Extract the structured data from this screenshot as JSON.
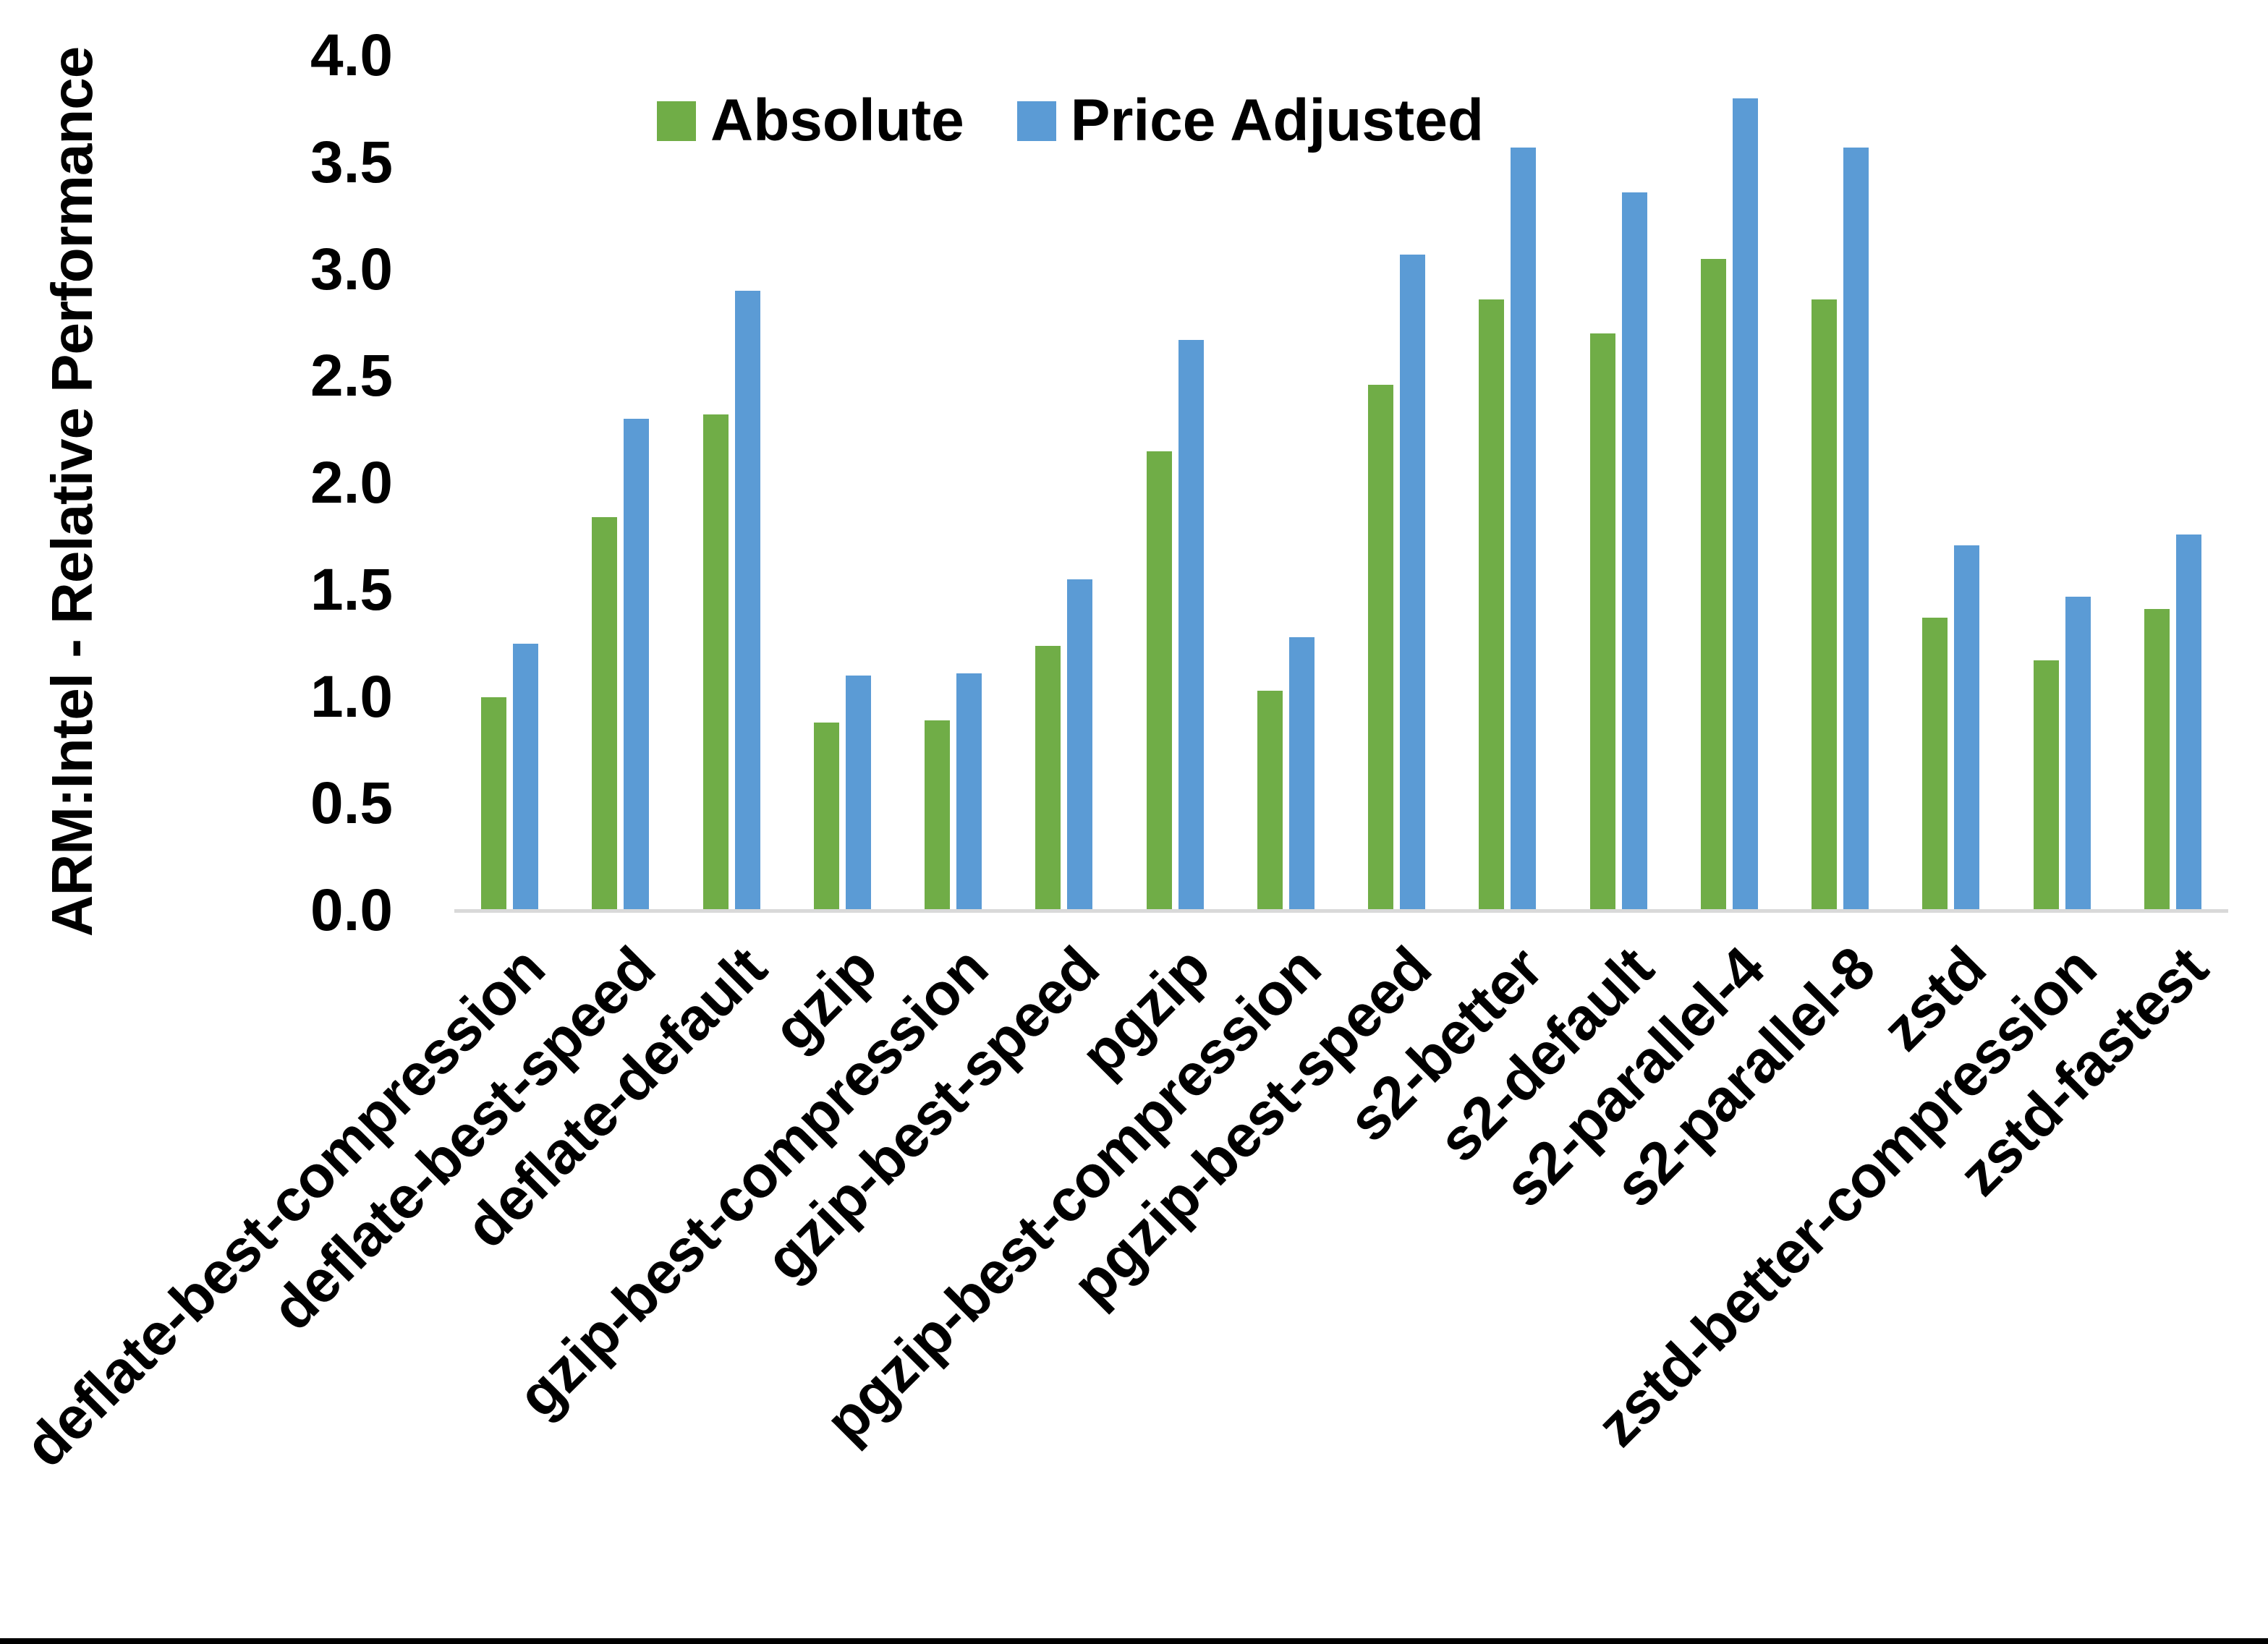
{
  "figure": {
    "background_color": "#ffffff",
    "axis_line_color": "#d9d9d9",
    "bottom_border_color": "#000000",
    "text_color": "#000000"
  },
  "chart_data": {
    "type": "bar",
    "title": "",
    "xlabel": "",
    "ylabel": "ARM:Intel - Relative Performance",
    "ylim": [
      0.0,
      4.0
    ],
    "y_tick_step": 0.5,
    "y_ticks": [
      "0.0",
      "0.5",
      "1.0",
      "1.5",
      "2.0",
      "2.5",
      "3.0",
      "3.5",
      "4.0"
    ],
    "grid": false,
    "legend_position": "top-center-inside",
    "categories": [
      "deflate-best-compression",
      "deflate-best-speed",
      "deflate-default",
      "gzip",
      "gzip-best-compression",
      "gzip-best-speed",
      "pgzip",
      "pgzip-best-compression",
      "pgzip-best-speed",
      "s2-better",
      "s2-default",
      "s2-parallel-4",
      "s2-parallel-8",
      "zstd",
      "zstd-better-compression",
      "zstd-fastest"
    ],
    "series": [
      {
        "name": "Absolute",
        "color": "#70ad47",
        "values": [
          1.0,
          1.84,
          2.32,
          0.88,
          0.89,
          1.24,
          2.15,
          1.03,
          2.46,
          2.86,
          2.7,
          3.05,
          2.86,
          1.37,
          1.17,
          1.41
        ]
      },
      {
        "name": "Price Adjusted",
        "color": "#5b9bd5",
        "values": [
          1.25,
          2.3,
          2.9,
          1.1,
          1.11,
          1.55,
          2.67,
          1.28,
          3.07,
          3.57,
          3.36,
          3.8,
          3.57,
          1.71,
          1.47,
          1.76
        ]
      }
    ]
  }
}
